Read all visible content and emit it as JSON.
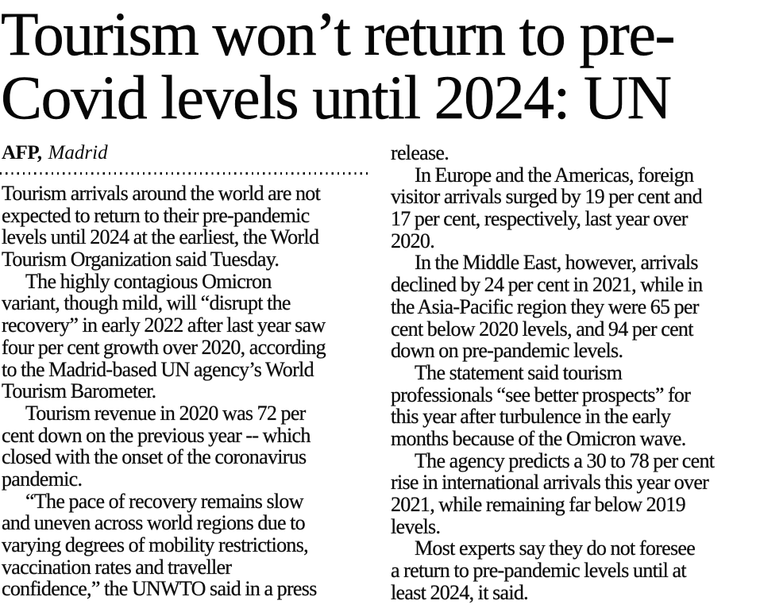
{
  "article": {
    "headline_lines": {
      "line1": "Tourism won’t return to pre-",
      "line2": "Covid levels until 2024: UN"
    },
    "byline": {
      "agency": "AFP,",
      "location": "Madrid"
    },
    "columns": {
      "left": [
        {
          "indent": false,
          "lines": [
            "Tourism arrivals around the world are not",
            "expected to return to their pre-pandemic",
            "levels until 2024 at the earliest, the World",
            "Tourism Organization said Tuesday."
          ]
        },
        {
          "indent": true,
          "lines": [
            "The highly contagious Omicron",
            "variant, though mild, will “disrupt the",
            "recovery” in early 2022 after last year saw",
            "four per cent growth over 2020, according",
            "to the Madrid-based UN agency’s World",
            "Tourism Barometer."
          ]
        },
        {
          "indent": true,
          "lines": [
            "Tourism revenue in 2020 was 72 per",
            "cent down on the previous year -- which",
            "closed with the onset of the coronavirus",
            "pandemic."
          ]
        },
        {
          "indent": true,
          "lines": [
            "“The pace of recovery remains slow",
            "and uneven across world regions due to",
            "varying degrees of mobility restrictions,",
            "vaccination rates and traveller",
            "confidence,” the UNWTO said in a press"
          ]
        }
      ],
      "right": [
        {
          "indent": false,
          "lines": [
            "release."
          ]
        },
        {
          "indent": true,
          "lines": [
            "In Europe and the Americas, foreign",
            "visitor arrivals surged by 19 per cent and",
            "17 per cent, respectively, last year over",
            "2020."
          ]
        },
        {
          "indent": true,
          "lines": [
            "In the Middle East, however, arrivals",
            "declined by 24 per cent in 2021, while in",
            "the Asia-Pacific region they were 65 per",
            "cent below 2020 levels, and 94 per cent",
            "down on pre-pandemic levels."
          ]
        },
        {
          "indent": true,
          "lines": [
            "The statement said tourism",
            "professionals “see better prospects” for",
            "this year after turbulence in the early",
            "months because of the Omicron wave.",
            ""
          ]
        },
        {
          "indent": true,
          "lines": [
            "The agency predicts a 30 to 78 per cent",
            "rise in international arrivals this year over",
            "2021, while remaining far below 2019",
            "levels."
          ]
        },
        {
          "indent": true,
          "lines": [
            "Most experts say they do not foresee",
            "a return to pre-pandemic levels until at",
            "least 2024, it said."
          ]
        }
      ]
    }
  }
}
